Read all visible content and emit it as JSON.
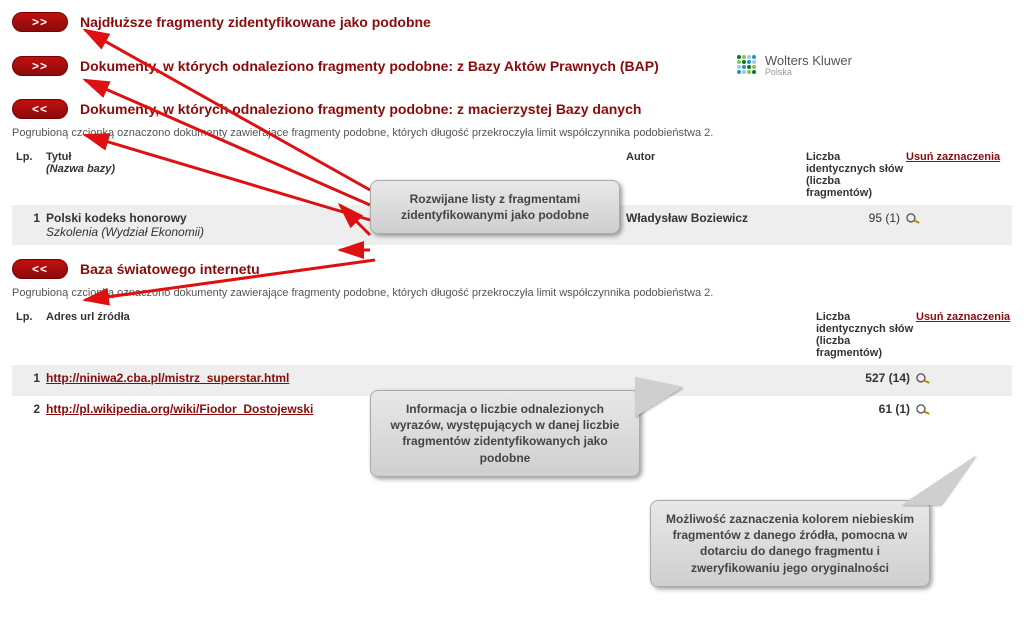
{
  "sections": {
    "s1": {
      "btn": ">>",
      "title": "Najdłuższe fragmenty zidentyfikowane jako podobne"
    },
    "s2": {
      "btn": ">>",
      "title": "Dokumenty, w których odnaleziono fragmenty podobne: z Bazy Aktów Prawnych (BAP)"
    },
    "s3": {
      "btn": "<<",
      "title": "Dokumenty, w których odnaleziono fragmenty podobne: z macierzystej Bazy danych"
    },
    "s4": {
      "btn": "<<",
      "title": "Baza światowego internetu"
    }
  },
  "note": "Pogrubioną czcionką oznaczono dokumenty zawierające fragmenty podobne, których długość przekroczyła limit współczynnika podobieństwa 2.",
  "headers": {
    "lp": "Lp.",
    "title": "Tytuł",
    "title_sub": "(Nazwa bazy)",
    "author": "Autor",
    "count": "Liczba identycznych słów (liczba fragmentów)",
    "remove": "Usuń zaznaczenia",
    "url": "Adres url źródła"
  },
  "table1": {
    "rows": [
      {
        "lp": "1",
        "title": "Polski kodeks honorowy",
        "sub": "Szkolenia (Wydział Ekonomii)",
        "author": "Władysław Boziewicz",
        "count": "95 (1)"
      }
    ]
  },
  "table2": {
    "rows": [
      {
        "lp": "1",
        "url": "http://niniwa2.cba.pl/mistrz_superstar.html",
        "count": "527 (14)"
      },
      {
        "lp": "2",
        "url": "http://pl.wikipedia.org/wiki/Fiodor_Dostojewski",
        "count": "61 (1)"
      }
    ]
  },
  "callouts": {
    "c1": "Rozwijane listy z fragmentami zidentyfikowanymi jako podobne",
    "c2": "Informacja o liczbie odnalezionych wyrazów, występujących w danej liczbie fragmentów zidentyfikowanych jako podobne",
    "c3": "Możliwość zaznaczenia kolorem niebieskim fragmentów z danego źródła, pomocna w dotarciu do danego fragmentu i zweryfikowaniu jego oryginalności"
  },
  "logo": {
    "name": "Wolters Kluwer",
    "sub": "Polska"
  },
  "colors": {
    "brand_red": "#8a0b0b",
    "wk_dots": [
      "#007b3a",
      "#8bc53f",
      "#a0c8e6",
      "#2196c4",
      "#8bc53f",
      "#007b3a",
      "#2196c4",
      "#a0c8e6",
      "#a0c8e6",
      "#2196c4",
      "#007b3a",
      "#8bc53f",
      "#2196c4",
      "#a0c8e6",
      "#8bc53f",
      "#007b3a"
    ]
  }
}
